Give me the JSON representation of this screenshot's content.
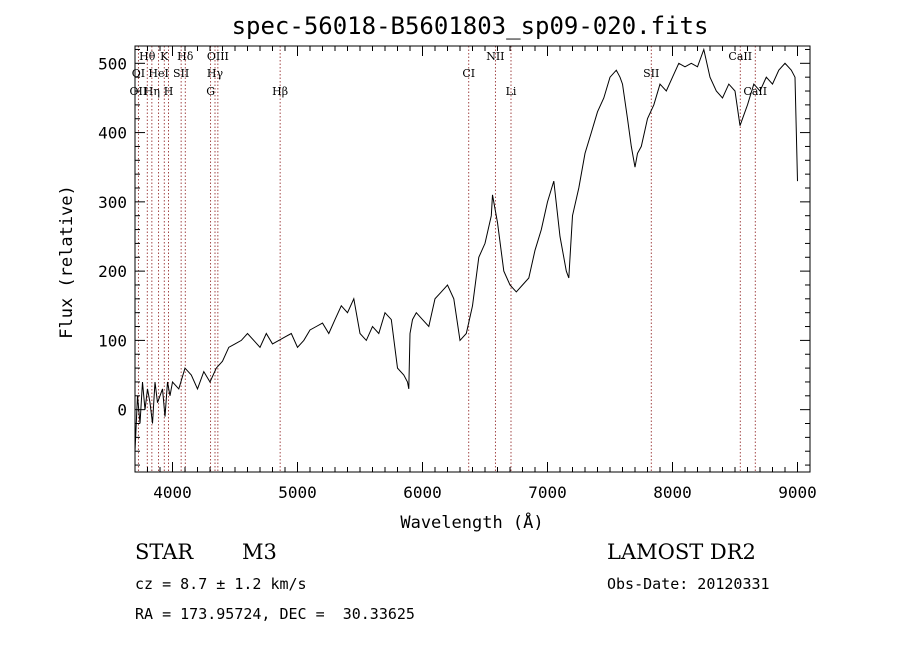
{
  "chart_data": {
    "type": "line",
    "title": "spec-56018-B5601803_sp09-020.fits",
    "xlabel": "Wavelength (Å)",
    "ylabel": "Flux (relative)",
    "xlim": [
      3700,
      9100
    ],
    "ylim": [
      -90,
      525
    ],
    "xticks": [
      4000,
      5000,
      6000,
      7000,
      8000,
      9000
    ],
    "yticks": [
      0,
      100,
      200,
      300,
      400,
      500
    ],
    "series": [
      {
        "x": [
          3700,
          3720,
          3740,
          3760,
          3780,
          3800,
          3820,
          3840,
          3860,
          3880,
          3900,
          3920,
          3940,
          3960,
          3980,
          4000,
          4050,
          4100,
          4150,
          4200,
          4250,
          4300,
          4350,
          4400,
          4450,
          4500,
          4550,
          4600,
          4650,
          4700,
          4750,
          4800,
          4850,
          4900,
          4950,
          5000,
          5050,
          5100,
          5150,
          5200,
          5250,
          5300,
          5350,
          5400,
          5450,
          5500,
          5550,
          5600,
          5650,
          5700,
          5750,
          5800,
          5850,
          5880,
          5890,
          5900,
          5920,
          5950,
          6000,
          6050,
          6100,
          6150,
          6200,
          6250,
          6300,
          6350,
          6400,
          6450,
          6500,
          6550,
          6560,
          6600,
          6650,
          6700,
          6750,
          6800,
          6850,
          6900,
          6950,
          7000,
          7050,
          7100,
          7150,
          7170,
          7200,
          7250,
          7300,
          7350,
          7400,
          7450,
          7500,
          7550,
          7580,
          7600,
          7640,
          7670,
          7700,
          7720,
          7750,
          7800,
          7850,
          7900,
          7950,
          8000,
          8050,
          8100,
          8150,
          8200,
          8250,
          8300,
          8350,
          8400,
          8450,
          8500,
          8540,
          8560,
          8600,
          8650,
          8700,
          8750,
          8800,
          8850,
          8900,
          8950,
          8980,
          9000
        ],
        "y": [
          -60,
          20,
          -20,
          40,
          0,
          30,
          10,
          -20,
          40,
          10,
          20,
          30,
          -10,
          40,
          20,
          40,
          30,
          60,
          50,
          30,
          55,
          40,
          60,
          70,
          90,
          95,
          100,
          110,
          100,
          90,
          110,
          95,
          100,
          105,
          110,
          90,
          100,
          115,
          120,
          125,
          110,
          130,
          150,
          140,
          160,
          110,
          100,
          120,
          110,
          140,
          130,
          60,
          50,
          40,
          30,
          110,
          130,
          140,
          130,
          120,
          160,
          170,
          180,
          160,
          100,
          110,
          150,
          220,
          240,
          280,
          310,
          270,
          200,
          180,
          170,
          180,
          190,
          230,
          260,
          300,
          330,
          250,
          200,
          190,
          280,
          320,
          370,
          400,
          430,
          450,
          480,
          490,
          480,
          470,
          420,
          380,
          350,
          370,
          380,
          420,
          440,
          470,
          460,
          480,
          500,
          495,
          500,
          495,
          520,
          480,
          460,
          450,
          470,
          460,
          410,
          420,
          440,
          470,
          460,
          480,
          470,
          490,
          500,
          490,
          480,
          330
        ]
      }
    ],
    "spectral_lines": [
      {
        "name": "Hθ",
        "x": 3798,
        "row": 0
      },
      {
        "name": "K",
        "x": 3934,
        "row": 0
      },
      {
        "name": "Hδ",
        "x": 4102,
        "row": 0
      },
      {
        "name": "OIII",
        "x": 4363,
        "row": 0
      },
      {
        "name": "NII",
        "x": 6583,
        "row": 0
      },
      {
        "name": "CaII",
        "x": 8542,
        "row": 0
      },
      {
        "name": "OI",
        "x": 3727,
        "row": 1
      },
      {
        "name": "HeI",
        "x": 3889,
        "row": 1
      },
      {
        "name": "SII",
        "x": 4069,
        "row": 1
      },
      {
        "name": "Hγ",
        "x": 4340,
        "row": 1
      },
      {
        "name": "CI",
        "x": 6370,
        "row": 1
      },
      {
        "name": "SII",
        "x": 7830,
        "row": 1
      },
      {
        "name": "OII",
        "x": 3727,
        "row": 2
      },
      {
        "name": "Hη",
        "x": 3835,
        "row": 2
      },
      {
        "name": "H",
        "x": 3968,
        "row": 2
      },
      {
        "name": "G",
        "x": 4305,
        "row": 2
      },
      {
        "name": "Hβ",
        "x": 4861,
        "row": 2
      },
      {
        "name": "Li",
        "x": 6708,
        "row": 2
      },
      {
        "name": "CaII",
        "x": 8662,
        "row": 2
      }
    ]
  },
  "info": {
    "object_class": "STAR",
    "subclass": "M3",
    "survey": "LAMOST DR2",
    "redshift": "cz = 8.7 ± 1.2 km/s",
    "obs_date": "Obs-Date: 20120331",
    "coords": "RA = 173.95724, DEC =  30.33625"
  },
  "colors": {
    "line": "#000000",
    "marker": "#8b1a1a",
    "background": "#ffffff"
  }
}
